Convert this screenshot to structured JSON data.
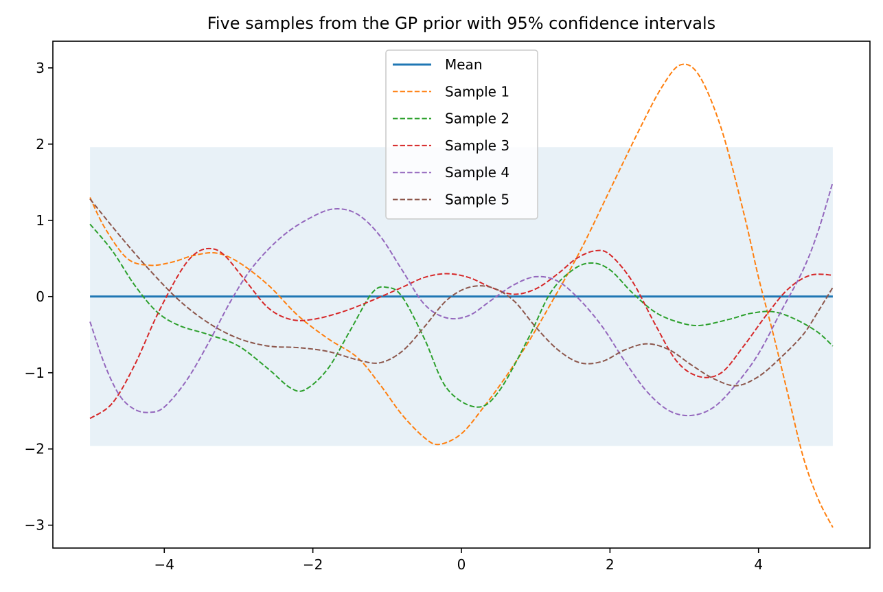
{
  "chart_data": {
    "type": "line",
    "title": "Five samples from the GP prior with 95% confidence intervals",
    "xlabel": "",
    "ylabel": "",
    "xlim": [
      -5.5,
      5.5
    ],
    "ylim": [
      -3.3,
      3.35
    ],
    "x_ticks": [
      -4,
      -2,
      0,
      2,
      4
    ],
    "x_tick_labels": [
      "−4",
      "−2",
      "0",
      "2",
      "4"
    ],
    "y_ticks": [
      -3,
      -2,
      -1,
      0,
      1,
      2,
      3
    ],
    "y_tick_labels": [
      "−3",
      "−2",
      "−1",
      "0",
      "1",
      "2",
      "3"
    ],
    "confidence_band": {
      "x_range": [
        -5,
        5
      ],
      "lower": -1.96,
      "upper": 1.96,
      "color": "#1f77b4",
      "opacity": 0.1
    },
    "legend_position": "top-center",
    "series": [
      {
        "name": "Mean",
        "color": "#1f77b4",
        "style": "solid",
        "points": [
          [
            -5,
            0
          ],
          [
            5,
            0
          ]
        ]
      },
      {
        "name": "Sample 1",
        "color": "#ff7f0e",
        "style": "dashed",
        "points": [
          [
            -5,
            1.3
          ],
          [
            -4.8,
            0.9
          ],
          [
            -4.5,
            0.5
          ],
          [
            -4.2,
            0.41
          ],
          [
            -3.9,
            0.45
          ],
          [
            -3.6,
            0.54
          ],
          [
            -3.3,
            0.57
          ],
          [
            -3.0,
            0.45
          ],
          [
            -2.6,
            0.15
          ],
          [
            -2.2,
            -0.25
          ],
          [
            -1.8,
            -0.55
          ],
          [
            -1.4,
            -0.8
          ],
          [
            -1.1,
            -1.15
          ],
          [
            -0.8,
            -1.55
          ],
          [
            -0.5,
            -1.85
          ],
          [
            -0.3,
            -1.94
          ],
          [
            0.0,
            -1.8
          ],
          [
            0.3,
            -1.45
          ],
          [
            0.6,
            -1.05
          ],
          [
            0.9,
            -0.6
          ],
          [
            1.2,
            -0.1
          ],
          [
            1.6,
            0.6
          ],
          [
            2.0,
            1.4
          ],
          [
            2.4,
            2.2
          ],
          [
            2.7,
            2.75
          ],
          [
            2.95,
            3.04
          ],
          [
            3.2,
            2.9
          ],
          [
            3.5,
            2.2
          ],
          [
            3.8,
            1.1
          ],
          [
            4.0,
            0.25
          ],
          [
            4.2,
            -0.5
          ],
          [
            4.4,
            -1.3
          ],
          [
            4.6,
            -2.1
          ],
          [
            4.8,
            -2.65
          ],
          [
            5.0,
            -3.03
          ]
        ]
      },
      {
        "name": "Sample 2",
        "color": "#2ca02c",
        "style": "dashed",
        "points": [
          [
            -5,
            0.95
          ],
          [
            -4.7,
            0.6
          ],
          [
            -4.4,
            0.15
          ],
          [
            -4.1,
            -0.2
          ],
          [
            -3.8,
            -0.38
          ],
          [
            -3.4,
            -0.5
          ],
          [
            -3.0,
            -0.65
          ],
          [
            -2.6,
            -0.95
          ],
          [
            -2.3,
            -1.2
          ],
          [
            -2.1,
            -1.22
          ],
          [
            -1.8,
            -0.95
          ],
          [
            -1.5,
            -0.45
          ],
          [
            -1.2,
            0.05
          ],
          [
            -1.0,
            0.12
          ],
          [
            -0.8,
            0.0
          ],
          [
            -0.5,
            -0.55
          ],
          [
            -0.2,
            -1.2
          ],
          [
            0.2,
            -1.45
          ],
          [
            0.5,
            -1.25
          ],
          [
            0.9,
            -0.55
          ],
          [
            1.2,
            0.05
          ],
          [
            1.5,
            0.35
          ],
          [
            1.75,
            0.44
          ],
          [
            2.0,
            0.35
          ],
          [
            2.3,
            0.05
          ],
          [
            2.6,
            -0.2
          ],
          [
            2.9,
            -0.33
          ],
          [
            3.2,
            -0.38
          ],
          [
            3.6,
            -0.3
          ],
          [
            3.9,
            -0.22
          ],
          [
            4.2,
            -0.2
          ],
          [
            4.5,
            -0.3
          ],
          [
            4.8,
            -0.47
          ],
          [
            5.0,
            -0.65
          ]
        ]
      },
      {
        "name": "Sample 3",
        "color": "#d62728",
        "style": "dashed",
        "points": [
          [
            -5,
            -1.6
          ],
          [
            -4.7,
            -1.4
          ],
          [
            -4.4,
            -0.9
          ],
          [
            -4.1,
            -0.25
          ],
          [
            -3.8,
            0.3
          ],
          [
            -3.6,
            0.55
          ],
          [
            -3.4,
            0.63
          ],
          [
            -3.2,
            0.55
          ],
          [
            -2.9,
            0.2
          ],
          [
            -2.6,
            -0.15
          ],
          [
            -2.3,
            -0.3
          ],
          [
            -2.0,
            -0.3
          ],
          [
            -1.6,
            -0.2
          ],
          [
            -1.2,
            -0.05
          ],
          [
            -0.8,
            0.12
          ],
          [
            -0.5,
            0.25
          ],
          [
            -0.2,
            0.3
          ],
          [
            0.1,
            0.25
          ],
          [
            0.4,
            0.12
          ],
          [
            0.7,
            0.03
          ],
          [
            1.0,
            0.1
          ],
          [
            1.3,
            0.3
          ],
          [
            1.55,
            0.5
          ],
          [
            1.8,
            0.6
          ],
          [
            2.0,
            0.55
          ],
          [
            2.3,
            0.2
          ],
          [
            2.6,
            -0.35
          ],
          [
            2.9,
            -0.85
          ],
          [
            3.2,
            -1.05
          ],
          [
            3.5,
            -1.0
          ],
          [
            3.8,
            -0.65
          ],
          [
            4.1,
            -0.25
          ],
          [
            4.4,
            0.1
          ],
          [
            4.7,
            0.28
          ],
          [
            5.0,
            0.28
          ]
        ]
      },
      {
        "name": "Sample 4",
        "color": "#9467bd",
        "style": "dashed",
        "points": [
          [
            -5,
            -0.33
          ],
          [
            -4.8,
            -0.9
          ],
          [
            -4.6,
            -1.3
          ],
          [
            -4.4,
            -1.48
          ],
          [
            -4.2,
            -1.52
          ],
          [
            -4.0,
            -1.45
          ],
          [
            -3.7,
            -1.1
          ],
          [
            -3.4,
            -0.6
          ],
          [
            -3.1,
            -0.05
          ],
          [
            -2.8,
            0.4
          ],
          [
            -2.4,
            0.8
          ],
          [
            -2.0,
            1.05
          ],
          [
            -1.7,
            1.15
          ],
          [
            -1.4,
            1.08
          ],
          [
            -1.1,
            0.8
          ],
          [
            -0.8,
            0.35
          ],
          [
            -0.5,
            -0.1
          ],
          [
            -0.2,
            -0.28
          ],
          [
            0.1,
            -0.25
          ],
          [
            0.4,
            -0.05
          ],
          [
            0.7,
            0.15
          ],
          [
            1.0,
            0.26
          ],
          [
            1.3,
            0.2
          ],
          [
            1.6,
            -0.05
          ],
          [
            1.9,
            -0.4
          ],
          [
            2.2,
            -0.85
          ],
          [
            2.5,
            -1.25
          ],
          [
            2.8,
            -1.5
          ],
          [
            3.1,
            -1.56
          ],
          [
            3.4,
            -1.45
          ],
          [
            3.7,
            -1.15
          ],
          [
            4.0,
            -0.75
          ],
          [
            4.3,
            -0.2
          ],
          [
            4.6,
            0.35
          ],
          [
            4.8,
            0.85
          ],
          [
            5.0,
            1.5
          ]
        ]
      },
      {
        "name": "Sample 5",
        "color": "#8c564b",
        "style": "dashed",
        "points": [
          [
            -5,
            1.28
          ],
          [
            -4.6,
            0.8
          ],
          [
            -4.2,
            0.35
          ],
          [
            -3.8,
            -0.05
          ],
          [
            -3.4,
            -0.35
          ],
          [
            -3.0,
            -0.55
          ],
          [
            -2.6,
            -0.65
          ],
          [
            -2.2,
            -0.67
          ],
          [
            -1.8,
            -0.72
          ],
          [
            -1.4,
            -0.83
          ],
          [
            -1.1,
            -0.87
          ],
          [
            -0.8,
            -0.72
          ],
          [
            -0.5,
            -0.4
          ],
          [
            -0.2,
            -0.05
          ],
          [
            0.1,
            0.12
          ],
          [
            0.4,
            0.12
          ],
          [
            0.7,
            -0.05
          ],
          [
            1.0,
            -0.4
          ],
          [
            1.3,
            -0.7
          ],
          [
            1.6,
            -0.87
          ],
          [
            1.9,
            -0.85
          ],
          [
            2.2,
            -0.7
          ],
          [
            2.5,
            -0.62
          ],
          [
            2.8,
            -0.7
          ],
          [
            3.1,
            -0.9
          ],
          [
            3.4,
            -1.08
          ],
          [
            3.7,
            -1.17
          ],
          [
            4.0,
            -1.05
          ],
          [
            4.3,
            -0.8
          ],
          [
            4.6,
            -0.5
          ],
          [
            4.8,
            -0.2
          ],
          [
            5.0,
            0.12
          ]
        ]
      }
    ]
  }
}
